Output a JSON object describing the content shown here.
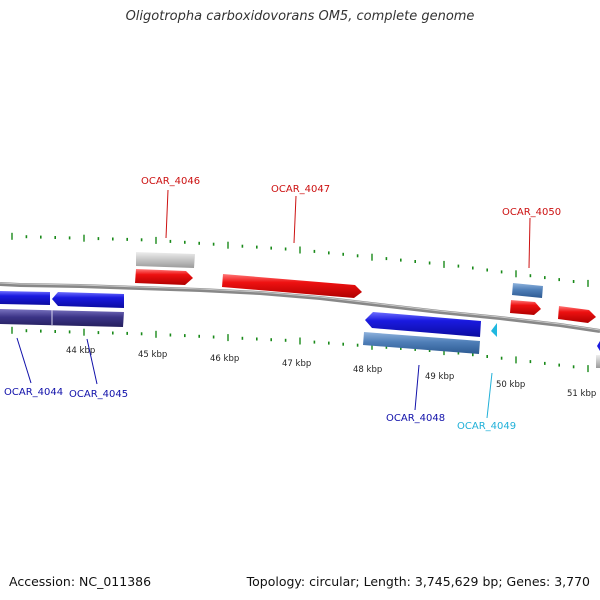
{
  "title": "Oligotropha carboxidovorans OM5, complete genome",
  "footer": {
    "accession": "Accession: NC_011386",
    "summary": "Topology: circular; Length: 3,745,629 bp; Genes: 3,770"
  },
  "colors": {
    "forward_cds": "#ee1111",
    "reverse_cds": "#1a1ae0",
    "pseudo_gray": "#c2c2c2",
    "steelblue_feature": "#4f7fb8",
    "navy_feature": "#3b3487",
    "cyan_label": "#20b0d8",
    "tick_green": "#1a8a1a",
    "backbone": "#808080"
  },
  "tick_labels": [
    "44 kbp",
    "45 kbp",
    "46 kbp",
    "47 kbp",
    "48 kbp",
    "49 kbp",
    "50 kbp",
    "51 kbp"
  ],
  "gene_labels": [
    {
      "id": "OCAR_4046",
      "strand": "forward",
      "color": "#cc1111"
    },
    {
      "id": "OCAR_4047",
      "strand": "forward",
      "color": "#cc1111"
    },
    {
      "id": "OCAR_4050",
      "strand": "forward",
      "color": "#cc1111"
    },
    {
      "id": "OCAR_4044",
      "strand": "reverse",
      "color": "#1111aa"
    },
    {
      "id": "OCAR_4045",
      "strand": "reverse",
      "color": "#1111aa"
    },
    {
      "id": "OCAR_4048",
      "strand": "reverse",
      "color": "#1111aa"
    },
    {
      "id": "OCAR_4049",
      "strand": "reverse",
      "color": "#20b0d8"
    }
  ]
}
